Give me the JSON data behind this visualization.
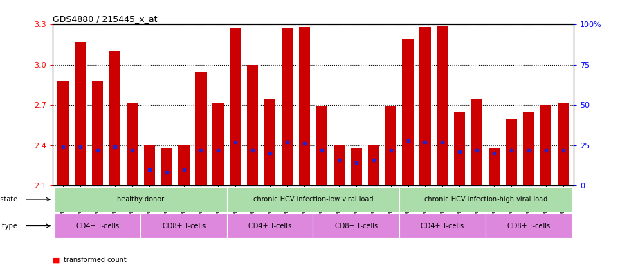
{
  "title": "GDS4880 / 215445_x_at",
  "samples": [
    "GSM1210739",
    "GSM1210740",
    "GSM1210741",
    "GSM1210742",
    "GSM1210743",
    "GSM1210754",
    "GSM1210755",
    "GSM1210756",
    "GSM1210757",
    "GSM1210758",
    "GSM1210745",
    "GSM1210750",
    "GSM1210751",
    "GSM1210752",
    "GSM1210753",
    "GSM1210760",
    "GSM1210765",
    "GSM1210766",
    "GSM1210767",
    "GSM1210768",
    "GSM1210744",
    "GSM1210746",
    "GSM1210747",
    "GSM1210748",
    "GSM1210749",
    "GSM1210759",
    "GSM1210761",
    "GSM1210762",
    "GSM1210763",
    "GSM1210764"
  ],
  "transformed_count": [
    2.88,
    3.17,
    2.88,
    3.1,
    2.71,
    2.4,
    2.38,
    2.4,
    2.95,
    2.71,
    3.27,
    3.0,
    2.75,
    3.27,
    3.28,
    2.69,
    2.4,
    2.38,
    2.4,
    2.69,
    3.19,
    3.28,
    3.29,
    2.65,
    2.74,
    2.38,
    2.6,
    2.65,
    2.7,
    2.71
  ],
  "percentile_rank": [
    24,
    24,
    22,
    24,
    22,
    10,
    8,
    10,
    22,
    22,
    27,
    22,
    20,
    27,
    26,
    22,
    16,
    14,
    16,
    22,
    28,
    27,
    27,
    21,
    22,
    20,
    22,
    22,
    22,
    22
  ],
  "ymin": 2.1,
  "ymax": 3.3,
  "bar_color": "#CC0000",
  "percentile_color": "#2222CC",
  "disease_state_groups": [
    {
      "label": "healthy donor",
      "start": 0,
      "end": 9,
      "color": "#AADDAA"
    },
    {
      "label": "chronic HCV infection-low viral load",
      "start": 10,
      "end": 19,
      "color": "#AADDAA"
    },
    {
      "label": "chronic HCV infection-high viral load",
      "start": 20,
      "end": 29,
      "color": "#AADDAA"
    }
  ],
  "cell_type_groups": [
    {
      "label": "CD4+ T-cells",
      "start": 0,
      "end": 4
    },
    {
      "label": "CD8+ T-cells",
      "start": 5,
      "end": 9
    },
    {
      "label": "CD4+ T-cells",
      "start": 10,
      "end": 14
    },
    {
      "label": "CD8+ T-cells",
      "start": 15,
      "end": 19
    },
    {
      "label": "CD4+ T-cells",
      "start": 20,
      "end": 24
    },
    {
      "label": "CD8+ T-cells",
      "start": 25,
      "end": 29
    }
  ],
  "cell_color": "#DD88DD",
  "left_yticks": [
    2.1,
    2.4,
    2.7,
    3.0,
    3.3
  ],
  "right_yticks": [
    0,
    25,
    50,
    75,
    100
  ],
  "right_yticklabels": [
    "0",
    "25",
    "50",
    "75",
    "100%"
  ],
  "bar_width": 0.65,
  "bg_color": "#F0F0F0"
}
